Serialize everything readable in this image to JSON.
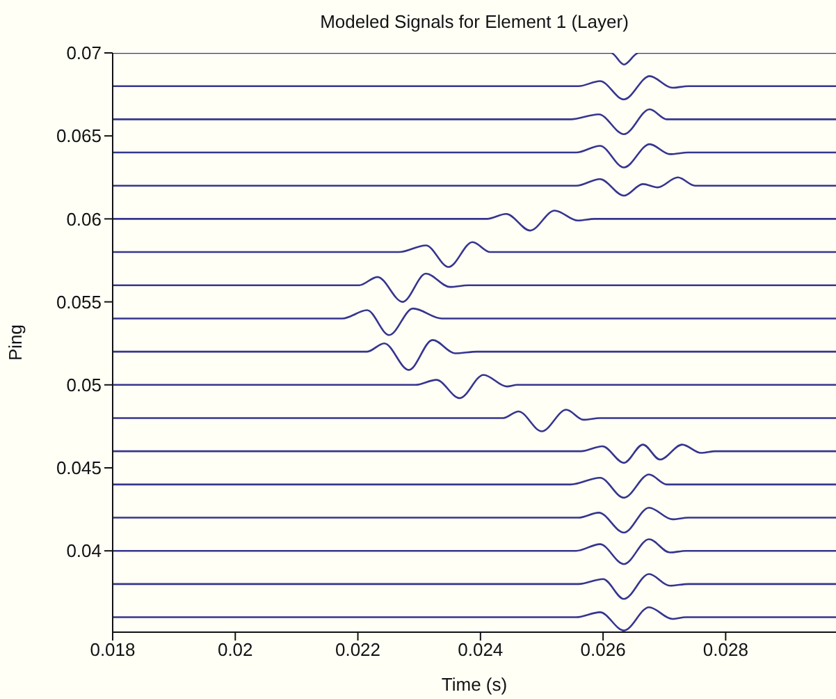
{
  "chart_data": {
    "type": "line",
    "title": "Modeled Signals for Element 1 (Layer)",
    "xlabel": "Time (s)",
    "ylabel": "Ping",
    "xlim": [
      0.018,
      0.0298
    ],
    "xticks": [
      0.018,
      0.02,
      0.022,
      0.024,
      0.026,
      0.028
    ],
    "ylim": [
      0.0351,
      0.07
    ],
    "yticks": [
      0.04,
      0.045,
      0.05,
      0.055,
      0.06,
      0.065,
      0.07
    ],
    "marker": "none",
    "line_style": "solid",
    "series": [
      {
        "color": "#35358f",
        "x": [
          0.018,
          0.02613,
          0.02634,
          0.02658,
          0.0298
        ],
        "values": [
          0.07,
          0.07,
          0.0693,
          0.07,
          0.07
        ]
      },
      {
        "color": "#35358f",
        "x": [
          0.018,
          0.0256,
          0.02595,
          0.02634,
          0.02676,
          0.02713,
          0.02739,
          0.0298
        ],
        "values": [
          0.068,
          0.068,
          0.0683,
          0.0672,
          0.0686,
          0.0679,
          0.068,
          0.068
        ]
      },
      {
        "color": "#35358f",
        "x": [
          0.018,
          0.02547,
          0.02593,
          0.02634,
          0.02676,
          0.02704,
          0.0298
        ],
        "values": [
          0.066,
          0.066,
          0.0663,
          0.0651,
          0.0666,
          0.066,
          0.066
        ]
      },
      {
        "color": "#35358f",
        "x": [
          0.018,
          0.02556,
          0.02595,
          0.02634,
          0.02676,
          0.02709,
          0.02739,
          0.0298
        ],
        "values": [
          0.064,
          0.064,
          0.0644,
          0.0631,
          0.0645,
          0.0639,
          0.064,
          0.064
        ]
      },
      {
        "color": "#35358f",
        "x": [
          0.018,
          0.02556,
          0.02595,
          0.02634,
          0.02665,
          0.02689,
          0.02722,
          0.0275,
          0.0298
        ],
        "values": [
          0.062,
          0.062,
          0.0624,
          0.0614,
          0.0621,
          0.0619,
          0.0625,
          0.062,
          0.062
        ]
      },
      {
        "color": "#35358f",
        "x": [
          0.018,
          0.02411,
          0.02442,
          0.02481,
          0.02521,
          0.02559,
          0.02586,
          0.0298
        ],
        "values": [
          0.06,
          0.06,
          0.0603,
          0.0593,
          0.0605,
          0.0599,
          0.06,
          0.06
        ]
      },
      {
        "color": "#35358f",
        "x": [
          0.018,
          0.02267,
          0.02311,
          0.02348,
          0.02387,
          0.02416,
          0.0298
        ],
        "values": [
          0.058,
          0.058,
          0.0584,
          0.0571,
          0.0586,
          0.058,
          0.058
        ]
      },
      {
        "color": "#35358f",
        "x": [
          0.018,
          0.02202,
          0.02232,
          0.02273,
          0.02311,
          0.0235,
          0.0238,
          0.0298
        ],
        "values": [
          0.056,
          0.056,
          0.0565,
          0.055,
          0.0567,
          0.0559,
          0.056,
          0.056
        ]
      },
      {
        "color": "#35358f",
        "x": [
          0.018,
          0.02175,
          0.02215,
          0.02251,
          0.0229,
          0.02337,
          0.0298
        ],
        "values": [
          0.054,
          0.054,
          0.0545,
          0.053,
          0.0546,
          0.054,
          0.054
        ]
      },
      {
        "color": "#35358f",
        "x": [
          0.018,
          0.02215,
          0.02243,
          0.02283,
          0.02322,
          0.02359,
          0.02394,
          0.0298
        ],
        "values": [
          0.052,
          0.052,
          0.0525,
          0.0509,
          0.0527,
          0.0519,
          0.052,
          0.052
        ]
      },
      {
        "color": "#35358f",
        "x": [
          0.018,
          0.02294,
          0.02328,
          0.02366,
          0.02405,
          0.02443,
          0.0246,
          0.0298
        ],
        "values": [
          0.05,
          0.05,
          0.0503,
          0.0492,
          0.0506,
          0.0499,
          0.05,
          0.05
        ]
      },
      {
        "color": "#35358f",
        "x": [
          0.018,
          0.02437,
          0.02462,
          0.025,
          0.0254,
          0.02568,
          0.02595,
          0.0298
        ],
        "values": [
          0.048,
          0.048,
          0.0484,
          0.0472,
          0.0485,
          0.0479,
          0.048,
          0.048
        ]
      },
      {
        "color": "#35358f",
        "x": [
          0.018,
          0.02564,
          0.02599,
          0.02634,
          0.02665,
          0.02693,
          0.02729,
          0.0276,
          0.02783,
          0.0298
        ],
        "values": [
          0.046,
          0.046,
          0.0463,
          0.0453,
          0.0464,
          0.0455,
          0.0464,
          0.0459,
          0.046,
          0.046
        ]
      },
      {
        "color": "#35358f",
        "x": [
          0.018,
          0.02547,
          0.02595,
          0.02634,
          0.02675,
          0.02704,
          0.0298
        ],
        "values": [
          0.044,
          0.044,
          0.0444,
          0.0432,
          0.0446,
          0.044,
          0.044
        ]
      },
      {
        "color": "#35358f",
        "x": [
          0.018,
          0.0256,
          0.02593,
          0.02634,
          0.02675,
          0.02713,
          0.02739,
          0.0298
        ],
        "values": [
          0.042,
          0.042,
          0.0423,
          0.0411,
          0.0426,
          0.0419,
          0.042,
          0.042
        ]
      },
      {
        "color": "#35358f",
        "x": [
          0.018,
          0.02556,
          0.02595,
          0.02634,
          0.02675,
          0.02709,
          0.02735,
          0.0298
        ],
        "values": [
          0.04,
          0.04,
          0.0404,
          0.0392,
          0.0407,
          0.0399,
          0.04,
          0.04
        ]
      },
      {
        "color": "#35358f",
        "x": [
          0.018,
          0.0256,
          0.026,
          0.02634,
          0.02675,
          0.02709,
          0.02739,
          0.0298
        ],
        "values": [
          0.038,
          0.038,
          0.0383,
          0.0371,
          0.0386,
          0.0379,
          0.038,
          0.038
        ]
      },
      {
        "color": "#35358f",
        "x": [
          0.018,
          0.02556,
          0.02595,
          0.02634,
          0.02675,
          0.02713,
          0.02735,
          0.0298
        ],
        "values": [
          0.036,
          0.036,
          0.0363,
          0.0352,
          0.0366,
          0.0359,
          0.036,
          0.036
        ]
      }
    ]
  }
}
